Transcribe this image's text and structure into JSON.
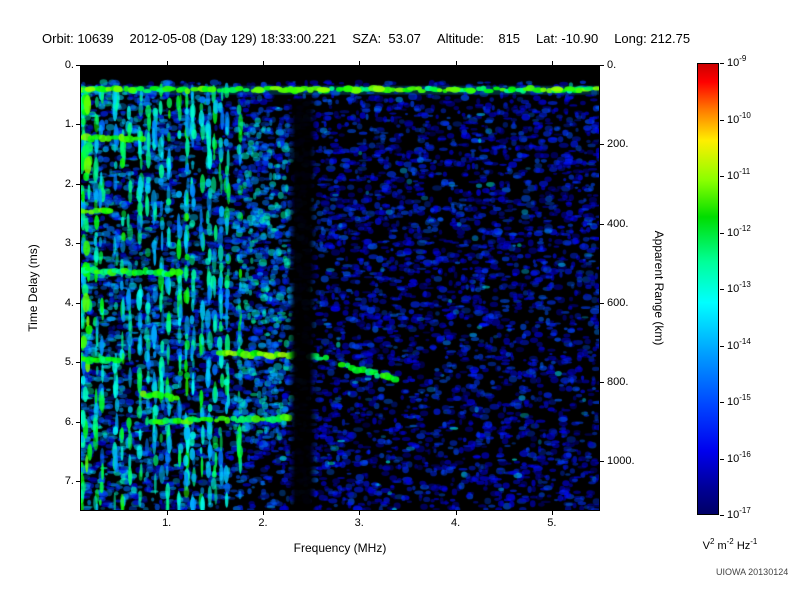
{
  "header": {
    "segments": [
      "Orbit: 10639",
      "2012-05-08 (Day 129) 18:33:00.221",
      "SZA:  53.07",
      "Altitude:    815",
      "Lat: -10.90",
      "Long: 212.75"
    ]
  },
  "footer": {
    "credit": "UIOWA 20130124"
  },
  "chart_data": {
    "type": "heatmap",
    "subtype": "radar-sounder-ionogram-spectrogram",
    "xlabel": "Frequency (MHz)",
    "xlim": [
      0.1,
      5.5
    ],
    "x_ticks": [
      {
        "v": 1,
        "label": "1."
      },
      {
        "v": 2,
        "label": "2."
      },
      {
        "v": 3,
        "label": "3."
      },
      {
        "v": 4,
        "label": "4."
      },
      {
        "v": 5,
        "label": "5."
      }
    ],
    "ylabel": "Time Delay (ms)",
    "ylim": [
      0,
      7.5
    ],
    "y_ticks": [
      {
        "v": 0,
        "label": "0."
      },
      {
        "v": 1,
        "label": "1."
      },
      {
        "v": 2,
        "label": "2."
      },
      {
        "v": 3,
        "label": "3."
      },
      {
        "v": 4,
        "label": "4."
      },
      {
        "v": 5,
        "label": "5."
      },
      {
        "v": 6,
        "label": "6."
      },
      {
        "v": 7,
        "label": "7."
      }
    ],
    "y2label": "Apparent Range (km)",
    "km_per_ms": 150,
    "y2_ticks": [
      {
        "v": 0,
        "label": "0."
      },
      {
        "v": 200,
        "label": "200."
      },
      {
        "v": 400,
        "label": "400."
      },
      {
        "v": 600,
        "label": "600."
      },
      {
        "v": 800,
        "label": "800."
      },
      {
        "v": 1000,
        "label": "1000."
      }
    ],
    "background_color": "#000000",
    "colorbar": {
      "scale": "log10",
      "exponents": [
        "-9",
        "-10",
        "-11",
        "-12",
        "-13",
        "-14",
        "-15",
        "-16",
        "-17"
      ],
      "unit_parts": [
        [
          "V",
          "2"
        ],
        [
          "m",
          "-2"
        ],
        [
          "Hz",
          "-1"
        ]
      ],
      "gradient": [
        [
          0,
          "#cc0000"
        ],
        [
          4,
          "#ff0000"
        ],
        [
          10,
          "#ff7700"
        ],
        [
          17,
          "#ffee00"
        ],
        [
          26,
          "#88ff00"
        ],
        [
          34,
          "#00dd00"
        ],
        [
          44,
          "#00ff99"
        ],
        [
          53,
          "#00ffff"
        ],
        [
          65,
          "#0099ff"
        ],
        [
          76,
          "#0044ff"
        ],
        [
          86,
          "#0000ee"
        ],
        [
          94,
          "#000099"
        ],
        [
          100,
          "#000066"
        ]
      ]
    },
    "features": [
      {
        "type": "striations",
        "name": "plasma-oscillation-harmonic-striations",
        "f0": 0.12,
        "f1": 1.78
      },
      {
        "type": "patch",
        "name": "dense-scatter-patch",
        "f0": 1.7,
        "f1": 2.3,
        "t0": 0.9,
        "t1": 6.3
      },
      {
        "type": "trace",
        "name": "left-streak-1",
        "f0": 0.1,
        "f1": 0.78,
        "t0": 1.22,
        "t1": 1.22,
        "bright": 0.8
      },
      {
        "type": "trace",
        "name": "left-streak-2",
        "f0": 0.1,
        "f1": 0.42,
        "t0": 2.45,
        "t1": 2.45,
        "bright": 0.8
      },
      {
        "type": "trace",
        "name": "left-streak-3",
        "f0": 0.1,
        "f1": 1.15,
        "t0": 3.45,
        "t1": 3.5,
        "bright": 0.7
      },
      {
        "type": "trace",
        "name": "left-streak-4",
        "f0": 0.1,
        "f1": 0.5,
        "t0": 4.95,
        "t1": 4.95,
        "bright": 0.7
      },
      {
        "type": "trace",
        "name": "ionosphere-echo-main",
        "f0": 1.55,
        "f1": 2.33,
        "t0": 4.85,
        "t1": 4.9,
        "bright": 0.85
      },
      {
        "type": "trace",
        "name": "ionosphere-echo-continuation",
        "f0": 2.5,
        "f1": 2.68,
        "t0": 4.9,
        "t1": 4.95,
        "bright": 0.6
      },
      {
        "type": "trace",
        "name": "ionosphere-echo-slope",
        "f0": 2.82,
        "f1": 3.38,
        "t0": 5.05,
        "t1": 5.3,
        "bright": 0.72
      },
      {
        "type": "trace",
        "name": "second-hop-echo",
        "f0": 0.85,
        "f1": 2.28,
        "t0": 6.0,
        "t1": 5.95,
        "bright": 0.75
      },
      {
        "type": "trace",
        "name": "clump-echo",
        "f0": 0.75,
        "f1": 1.12,
        "t0": 5.55,
        "t1": 5.6,
        "bright": 0.8
      },
      {
        "type": "gap",
        "name": "absorption-gap",
        "f0": 2.32,
        "f1": 2.5,
        "t0": 0.55
      },
      {
        "type": "band",
        "name": "surface-reflection-band",
        "t": 0.4,
        "f0": 0.1,
        "f1": 5.5
      }
    ]
  }
}
